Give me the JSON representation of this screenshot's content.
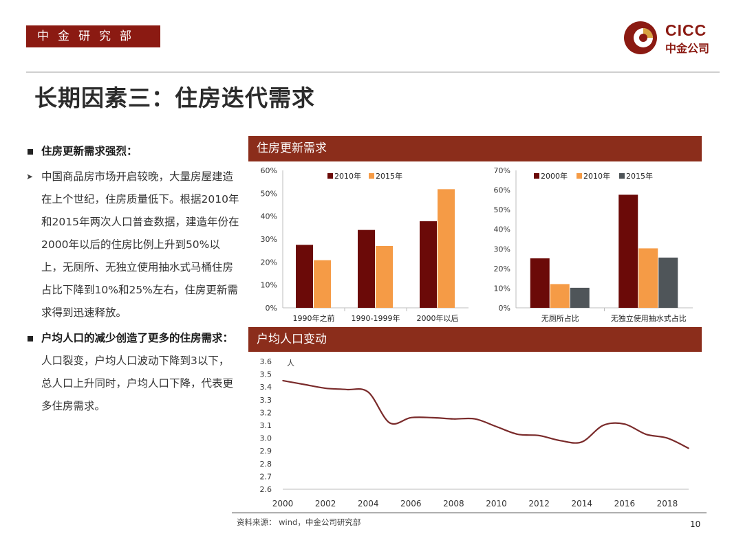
{
  "header": {
    "dept": "中金研究部",
    "logo_en": "CICC",
    "logo_cn": "中金公司"
  },
  "title": "长期因素三：住房迭代需求",
  "left": {
    "b1_title": "住房更新需求强烈：",
    "b1_text": "中国商品房市场开启较晚，大量房屋建造在上个世纪，住房质量低下。根据2010年和2015年两次人口普查数据，建造年份在2000年以后的住房比例上升到50%以上，无厕所、无独立使用抽水式马桶住房占比下降到10%和25%左右，住房更新需求得到迅速释放。",
    "b2_title": "户均人口的减少创造了更多的住房需求：",
    "b2_text": "人口裂变，户均人口波动下降到3以下，总人口上升同时，户均人口下降，代表更多住房需求。"
  },
  "bands": {
    "top": "住房更新需求",
    "bottom": "户均人口变动"
  },
  "colors": {
    "dark": "#6b0a08",
    "orange": "#f59b46",
    "gray": "#4f5559",
    "band": "#8b2d1b",
    "line": "#7a2b2b"
  },
  "chart_data": [
    {
      "type": "bar",
      "categories": [
        "1990年之前",
        "1990-1999年",
        "2000年以后"
      ],
      "series": [
        {
          "name": "2010年",
          "values": [
            27.5,
            34,
            37.8
          ]
        },
        {
          "name": "2015年",
          "values": [
            20.8,
            27,
            51.8
          ]
        }
      ],
      "yticks": [
        "0%",
        "10%",
        "20%",
        "30%",
        "40%",
        "50%",
        "60%"
      ],
      "ylim": [
        0,
        60
      ],
      "legend": "top"
    },
    {
      "type": "bar",
      "categories": [
        "无厕所占比",
        "无独立使用抽水式占比"
      ],
      "series": [
        {
          "name": "2000年",
          "values": [
            25.2,
            57.6
          ]
        },
        {
          "name": "2010年",
          "values": [
            12.1,
            30.3
          ]
        },
        {
          "name": "2015年",
          "values": [
            10.2,
            25.6
          ]
        }
      ],
      "yticks": [
        "0%",
        "10%",
        "20%",
        "30%",
        "40%",
        "50%",
        "60%",
        "70%"
      ],
      "ylim": [
        0,
        70
      ],
      "legend": "top"
    },
    {
      "type": "line",
      "unit_label": "人",
      "x": [
        2000,
        2001,
        2002,
        2003,
        2004,
        2005,
        2006,
        2007,
        2008,
        2009,
        2010,
        2011,
        2012,
        2013,
        2014,
        2015,
        2016,
        2017,
        2018,
        2019
      ],
      "y": [
        3.45,
        3.42,
        3.39,
        3.38,
        3.36,
        3.12,
        3.16,
        3.16,
        3.15,
        3.15,
        3.09,
        3.03,
        3.02,
        2.98,
        2.97,
        3.1,
        3.11,
        3.03,
        3.0,
        2.92
      ],
      "xticks": [
        "2000",
        "2002",
        "2004",
        "2006",
        "2008",
        "2010",
        "2012",
        "2014",
        "2016",
        "2018"
      ],
      "yticks": [
        "2.6",
        "2.7",
        "2.8",
        "2.9",
        "3.0",
        "3.1",
        "3.2",
        "3.3",
        "3.4",
        "3.5",
        "3.6"
      ],
      "ylim": [
        2.6,
        3.6
      ],
      "xlim": [
        2000,
        2019
      ]
    }
  ],
  "footer": {
    "source": "资料来源：  wind，中金公司研究部",
    "page": "10"
  }
}
